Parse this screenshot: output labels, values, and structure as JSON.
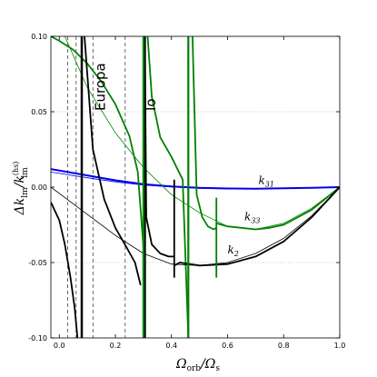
{
  "chart_data": {
    "type": "line",
    "xlim": [
      -0.03,
      1.0
    ],
    "ylim": [
      -0.1,
      0.1
    ],
    "xticks": [
      "0.0",
      "0.2",
      "0.4",
      "0.6",
      "0.8",
      "1.0"
    ],
    "yticks": [
      "-0.10",
      "-0.05",
      "0.00",
      "0.05",
      "0.10"
    ],
    "xlabel_main": "Ω",
    "xlabel_sub": "orb",
    "xlabel_tail": "/Ω",
    "xlabel_sub2": "s",
    "ylabel_text": "Δk",
    "ylabel_sub": "lm",
    "ylabel_mid": "/k",
    "ylabel_sup": "(hs)",
    "ylabel_sub2": "lm",
    "grid": "horizontal dotted at ±0.05",
    "labels": {
      "k31": "k",
      "k31_sub": "31",
      "k33": "k",
      "k33_sub": "33",
      "k2": "k",
      "k2_sub": "2"
    },
    "moons": [
      {
        "name": "Europa",
        "x": 0.12
      },
      {
        "name": "Io",
        "x": 0.3
      }
    ],
    "dashed_lines_x": [
      0.03,
      0.06,
      0.12,
      0.235
    ],
    "series": [
      {
        "name": "k31 (thick)",
        "color": "#0000ee",
        "width": 2.0,
        "x": [
          -0.03,
          0.1,
          0.2,
          0.3,
          0.4,
          0.5,
          0.6,
          0.7,
          0.8,
          0.9,
          1.0
        ],
        "y": [
          0.012,
          0.0078,
          0.0045,
          0.002,
          0.0004,
          -0.0005,
          -0.0009,
          -0.001,
          -0.0008,
          -0.0004,
          0.0
        ]
      },
      {
        "name": "k31 (thin)",
        "color": "#0000ee",
        "width": 0.8,
        "x": [
          -0.03,
          0.1,
          0.2,
          0.3,
          0.4,
          0.5,
          0.6,
          0.7,
          0.8,
          0.9,
          1.0
        ],
        "y": [
          0.01,
          0.0062,
          0.0035,
          0.0014,
          0.0001,
          -0.0008,
          -0.0011,
          -0.0011,
          -0.0009,
          -0.0005,
          0.0
        ]
      },
      {
        "name": "k33 (thin)",
        "color": "#008000",
        "width": 0.8,
        "x": [
          0.02,
          0.1,
          0.2,
          0.3,
          0.4,
          0.5,
          0.6,
          0.7,
          0.8,
          0.9,
          1.0
        ],
        "y": [
          0.1,
          0.066,
          0.036,
          0.013,
          -0.005,
          -0.017,
          -0.026,
          -0.028,
          -0.024,
          -0.014,
          0.0
        ]
      },
      {
        "name": "k33 main",
        "color": "#008000",
        "width": 1.8,
        "x": [
          -0.03,
          0.0,
          0.05,
          0.1,
          0.15,
          0.2,
          0.25,
          0.28,
          0.3
        ],
        "y": [
          0.1,
          0.097,
          0.091,
          0.082,
          0.07,
          0.055,
          0.034,
          0.01,
          -0.04
        ]
      },
      {
        "name": "k33 branch 2",
        "color": "#008000",
        "width": 1.8,
        "x": [
          0.315,
          0.33,
          0.36,
          0.4,
          0.44,
          0.46
        ],
        "y": [
          0.1,
          0.06,
          0.033,
          0.02,
          0.005,
          -0.1
        ]
      },
      {
        "name": "k33 branch 3",
        "color": "#008000",
        "width": 1.8,
        "x": [
          0.475,
          0.49,
          0.51,
          0.53,
          0.55,
          0.56
        ],
        "y": [
          0.1,
          -0.005,
          -0.02,
          -0.026,
          -0.028,
          -0.027
        ]
      },
      {
        "name": "k33 branch 4",
        "color": "#008000",
        "width": 1.8,
        "x": [
          0.56,
          0.6,
          0.7,
          0.75,
          0.8,
          0.9,
          1.0
        ],
        "y": [
          -0.024,
          -0.026,
          -0.028,
          -0.027,
          -0.025,
          -0.015,
          0.0
        ]
      },
      {
        "name": "k2 (thin)",
        "color": "#000000",
        "width": 0.8,
        "x": [
          -0.03,
          0.1,
          0.2,
          0.3,
          0.4,
          0.5,
          0.6,
          0.7,
          0.8,
          0.9,
          1.0
        ],
        "y": [
          0.0,
          -0.018,
          -0.032,
          -0.044,
          -0.051,
          -0.052,
          -0.05,
          -0.044,
          -0.034,
          -0.019,
          0.0
        ]
      },
      {
        "name": "k2 branch 1",
        "color": "#000000",
        "width": 1.8,
        "x": [
          -0.03,
          0.0,
          0.02,
          0.04,
          0.055,
          0.065
        ],
        "y": [
          -0.01,
          -0.022,
          -0.038,
          -0.06,
          -0.08,
          -0.1
        ]
      },
      {
        "name": "k2 branch 2",
        "color": "#000000",
        "width": 1.8,
        "x": [
          0.09,
          0.12,
          0.16,
          0.2,
          0.24,
          0.27,
          0.29
        ],
        "y": [
          0.1,
          0.025,
          -0.008,
          -0.027,
          -0.04,
          -0.05,
          -0.065
        ]
      },
      {
        "name": "k2 branch 3",
        "color": "#000000",
        "width": 1.8,
        "x": [
          0.305,
          0.31,
          0.33,
          0.36,
          0.39,
          0.41
        ],
        "y": [
          0.1,
          -0.02,
          -0.038,
          -0.044,
          -0.046,
          -0.046
        ]
      },
      {
        "name": "k2 branch 4",
        "color": "#000000",
        "width": 1.8,
        "x": [
          0.41,
          0.43,
          0.5,
          0.6,
          0.7,
          0.8,
          0.9,
          1.0
        ],
        "y": [
          -0.052,
          -0.05,
          -0.052,
          -0.051,
          -0.046,
          -0.036,
          -0.02,
          0.0
        ]
      },
      {
        "name": "k2 spike 1",
        "color": "#000000",
        "width": 1.8,
        "x": [
          0.41,
          0.41
        ],
        "y": [
          -0.06,
          0.005
        ]
      },
      {
        "name": "k33 spike",
        "color": "#008000",
        "width": 1.8,
        "x": [
          0.56,
          0.56
        ],
        "y": [
          -0.06,
          -0.007
        ]
      },
      {
        "name": "k2 vertical 0.08",
        "color": "#000000",
        "width": 2.5,
        "x": [
          0.08,
          0.08
        ],
        "y": [
          -0.1,
          0.1
        ]
      },
      {
        "name": "k2 vertical 0.3",
        "color": "#000000",
        "width": 2.5,
        "x": [
          0.305,
          0.305
        ],
        "y": [
          -0.1,
          0.1
        ]
      },
      {
        "name": "k33 vertical 0.3",
        "color": "#008000",
        "width": 2.2,
        "x": [
          0.3,
          0.3
        ],
        "y": [
          -0.1,
          0.1
        ]
      },
      {
        "name": "k33 vertical 0.46",
        "color": "#008000",
        "width": 2.2,
        "x": [
          0.46,
          0.46
        ],
        "y": [
          -0.1,
          0.1
        ]
      }
    ]
  }
}
